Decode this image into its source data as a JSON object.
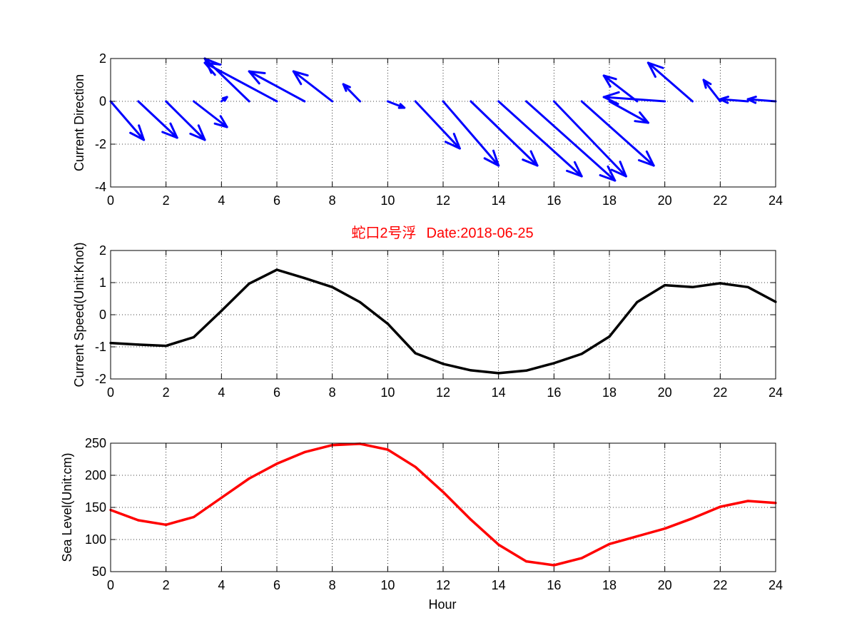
{
  "chart_data": [
    {
      "type": "quiver",
      "ylabel": "Current Direction",
      "xlim": [
        0,
        24
      ],
      "ylim": [
        -4,
        2
      ],
      "xticks": [
        0,
        2,
        4,
        6,
        8,
        10,
        12,
        14,
        16,
        18,
        20,
        22,
        24
      ],
      "yticks": [
        -4,
        -2,
        0,
        2
      ],
      "grid": true,
      "color": "#0000ff",
      "vectors": [
        {
          "x": 0,
          "u": 1.2,
          "v": -1.8
        },
        {
          "x": 1,
          "u": 1.4,
          "v": -1.7
        },
        {
          "x": 2,
          "u": 1.4,
          "v": -1.8
        },
        {
          "x": 3,
          "u": 1.2,
          "v": -1.2
        },
        {
          "x": 4,
          "u": 0.2,
          "v": 0.2
        },
        {
          "x": 5,
          "u": -1.6,
          "v": 2.0
        },
        {
          "x": 6,
          "u": -2.6,
          "v": 1.8
        },
        {
          "x": 7,
          "u": -2.0,
          "v": 1.4
        },
        {
          "x": 8,
          "u": -1.4,
          "v": 1.4
        },
        {
          "x": 9,
          "u": -0.6,
          "v": 0.8
        },
        {
          "x": 10,
          "u": 0.6,
          "v": -0.3
        },
        {
          "x": 11,
          "u": 1.6,
          "v": -2.2
        },
        {
          "x": 12,
          "u": 2.0,
          "v": -3.0
        },
        {
          "x": 13,
          "u": 2.4,
          "v": -3.0
        },
        {
          "x": 14,
          "u": 3.0,
          "v": -3.5
        },
        {
          "x": 15,
          "u": 3.2,
          "v": -3.7
        },
        {
          "x": 16,
          "u": 2.6,
          "v": -3.5
        },
        {
          "x": 17,
          "u": 2.6,
          "v": -3.0
        },
        {
          "x": 18,
          "u": 1.4,
          "v": -1.0
        },
        {
          "x": 19,
          "u": -1.2,
          "v": 1.2
        },
        {
          "x": 20,
          "u": -2.2,
          "v": 0.2
        },
        {
          "x": 21,
          "u": -1.6,
          "v": 1.8
        },
        {
          "x": 22,
          "u": -0.6,
          "v": 1.0
        },
        {
          "x": 23,
          "u": -1.0,
          "v": 0.1
        },
        {
          "x": 24,
          "u": -1.0,
          "v": 0.1
        }
      ]
    },
    {
      "type": "line",
      "title_cn": "蛇口2号浮",
      "title_date": "Date:2018-06-25",
      "title_color": "#ff0000",
      "ylabel": "Current Speed(Unit:Knot)",
      "xlim": [
        0,
        24
      ],
      "ylim": [
        -2,
        2
      ],
      "xticks": [
        0,
        2,
        4,
        6,
        8,
        10,
        12,
        14,
        16,
        18,
        20,
        22,
        24
      ],
      "yticks": [
        -2,
        -1,
        0,
        1,
        2
      ],
      "grid": true,
      "color": "#000000",
      "x": [
        0,
        1,
        2,
        3,
        4,
        5,
        6,
        7,
        8,
        9,
        10,
        11,
        12,
        13,
        14,
        15,
        16,
        17,
        18,
        19,
        20,
        21,
        22,
        23,
        24
      ],
      "y": [
        -0.88,
        -0.93,
        -0.97,
        -0.7,
        0.12,
        0.97,
        1.4,
        1.14,
        0.86,
        0.39,
        -0.28,
        -1.2,
        -1.53,
        -1.73,
        -1.82,
        -1.74,
        -1.51,
        -1.22,
        -0.68,
        0.39,
        0.92,
        0.86,
        0.98,
        0.86,
        0.4
      ]
    },
    {
      "type": "line",
      "ylabel": "Sea Level(Unit:cm)",
      "xlabel": "Hour",
      "xlim": [
        0,
        24
      ],
      "ylim": [
        50,
        250
      ],
      "xticks": [
        0,
        2,
        4,
        6,
        8,
        10,
        12,
        14,
        16,
        18,
        20,
        22,
        24
      ],
      "yticks": [
        50,
        100,
        150,
        200,
        250
      ],
      "grid": true,
      "color": "#ff0000",
      "x": [
        0,
        1,
        2,
        3,
        4,
        5,
        6,
        7,
        8,
        9,
        10,
        11,
        12,
        13,
        14,
        15,
        16,
        17,
        18,
        19,
        20,
        21,
        22,
        23,
        24
      ],
      "y": [
        146,
        130,
        123,
        135,
        165,
        195,
        218,
        236,
        247,
        249,
        240,
        213,
        174,
        131,
        92,
        66,
        60,
        71,
        93,
        105,
        117,
        133,
        151,
        160,
        157
      ]
    }
  ]
}
